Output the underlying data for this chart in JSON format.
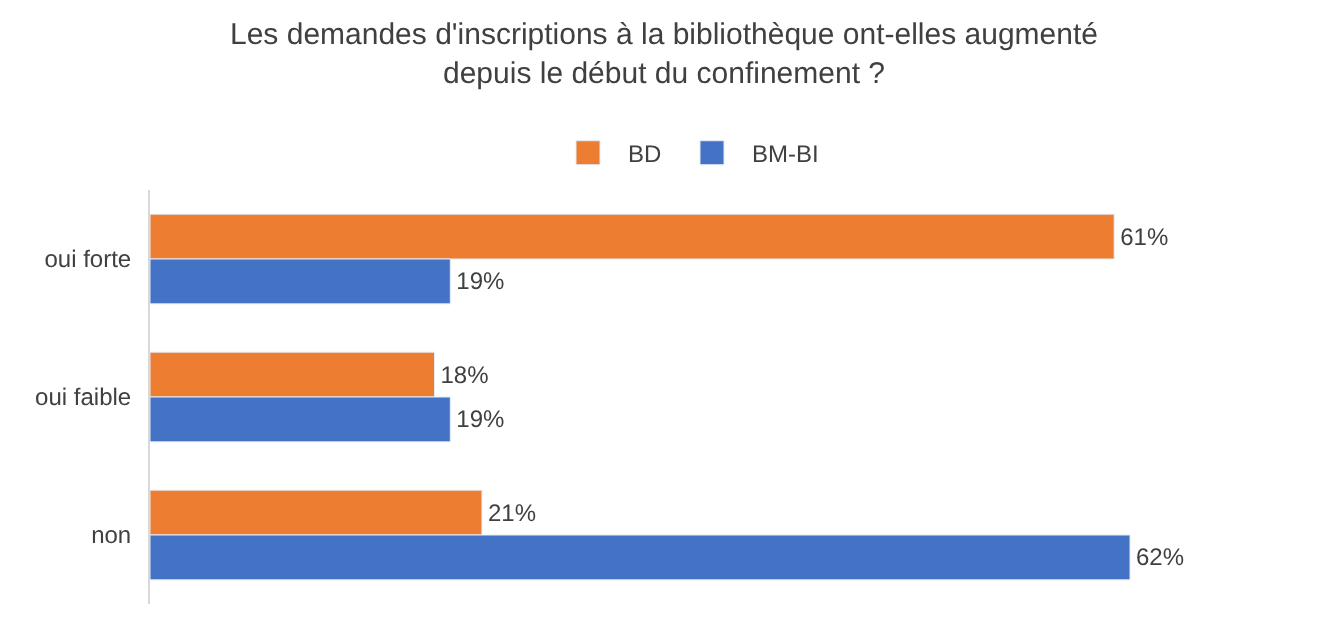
{
  "chart_data": {
    "type": "bar",
    "orientation": "horizontal",
    "title": "Les demandes d'inscriptions à la bibliothèque ont-elles augmenté depuis le début du confinement ?",
    "categories": [
      "oui forte",
      "oui faible",
      "non"
    ],
    "series": [
      {
        "name": "BD",
        "color": "#ed7d31",
        "values": [
          61,
          18,
          21
        ],
        "value_labels": [
          "61%",
          "18%",
          "21%"
        ]
      },
      {
        "name": "BM-BI",
        "color": "#4472c4",
        "values": [
          19,
          19,
          62
        ],
        "value_labels": [
          "19%",
          "19%",
          "62%"
        ]
      }
    ],
    "legend": "top"
  }
}
